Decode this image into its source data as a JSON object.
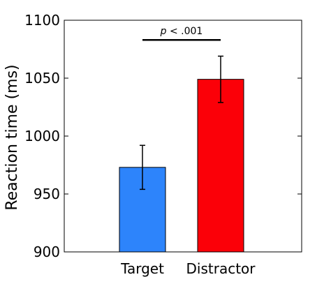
{
  "chart_data": {
    "type": "bar",
    "categories": [
      "Target",
      "Distractor"
    ],
    "values": [
      973,
      1049
    ],
    "error": [
      19,
      20
    ],
    "colors": [
      "#2d84fb",
      "#fb0008"
    ],
    "ylabel": "Reaction time (ms)",
    "xlabel": "",
    "ylim": [
      900,
      1100
    ],
    "yticks": [
      900,
      950,
      1000,
      1050,
      1100
    ],
    "grid": false,
    "significance": {
      "label_italic": "p",
      "label_rest": " < .001",
      "y_value": 1083
    }
  }
}
